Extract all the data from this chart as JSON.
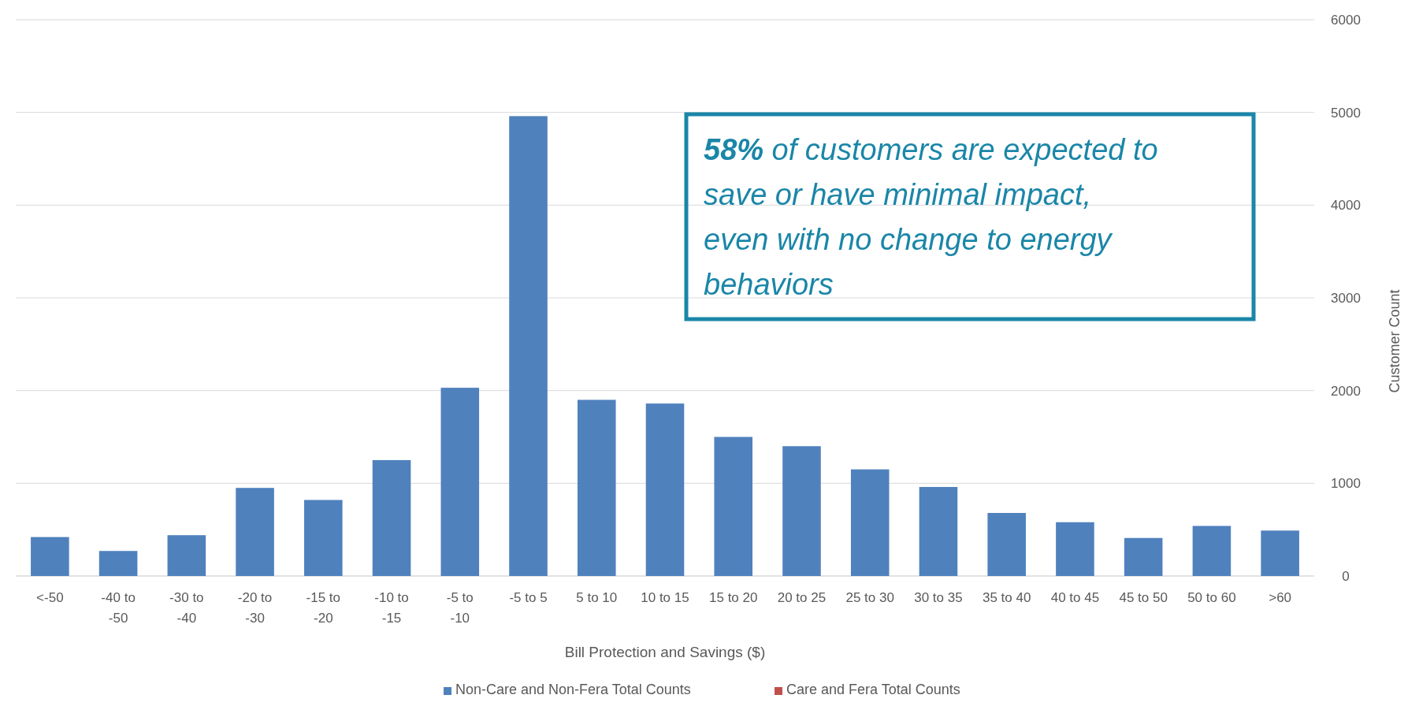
{
  "chart_data": {
    "type": "bar",
    "xlabel": "Bill Protection and Savings ($)",
    "ylabel": "Customer Count",
    "categories": [
      "<-50",
      "-40 to -50",
      "-30 to -40",
      "-20 to -30",
      "-15 to -20",
      "-10 to -15",
      "-5 to -10",
      "-5 to 5",
      "5 to 10",
      "10 to 15",
      "15 to 20",
      "20 to 25",
      "25 to 30",
      "30 to 35",
      "35 to 40",
      "40 to 45",
      "45 to 50",
      "50 to 60",
      ">60"
    ],
    "series": [
      {
        "name": "Non-Care and Non-Fera Total Counts",
        "color": "#4f81bd",
        "values": [
          420,
          270,
          440,
          950,
          820,
          1250,
          2030,
          4960,
          1900,
          1860,
          1500,
          1400,
          1150,
          960,
          680,
          580,
          410,
          540,
          490
        ]
      },
      {
        "name": "Care and Fera Total Counts",
        "color": "#c0504d",
        "values": [
          null,
          null,
          null,
          null,
          null,
          null,
          null,
          null,
          null,
          null,
          null,
          null,
          null,
          null,
          null,
          null,
          null,
          null,
          null
        ]
      }
    ],
    "ylim": [
      0,
      6000
    ],
    "yticks": [
      0,
      1000,
      2000,
      3000,
      4000,
      5000,
      6000
    ],
    "grid": "y",
    "legend": "bottom",
    "annotations": [
      "58% of customers are expected to save or have minimal impact, even with no change to energy behaviors"
    ]
  }
}
